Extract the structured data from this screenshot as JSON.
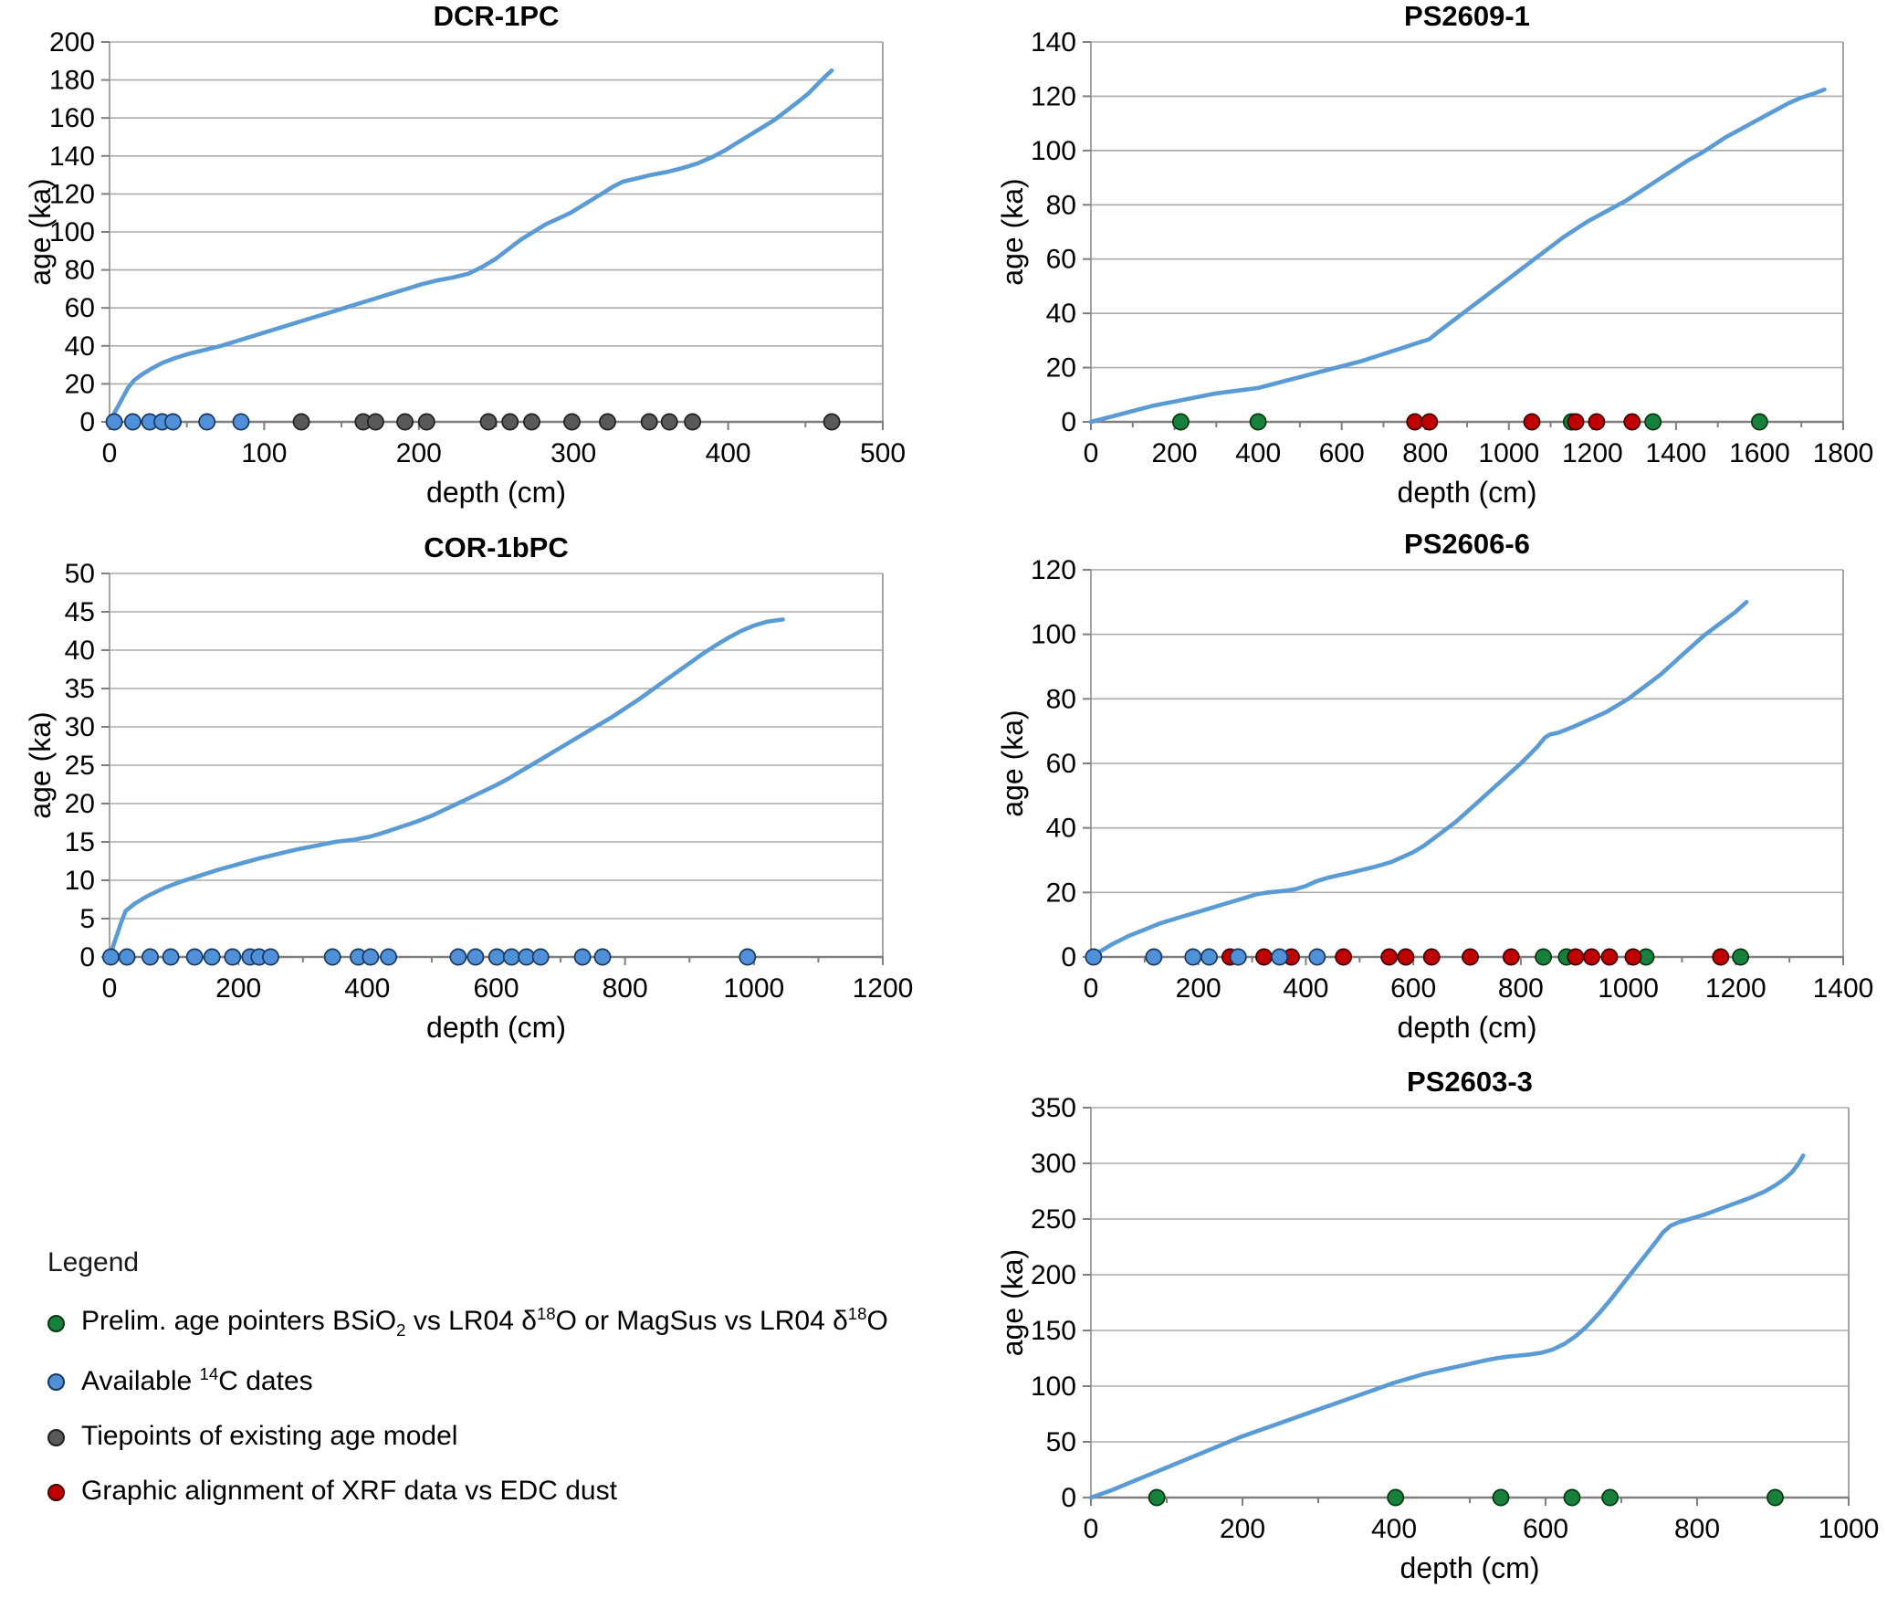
{
  "figure": {
    "background": "#ffffff"
  },
  "colors": {
    "line": "#5B9BD5",
    "grid": "#ABABAB",
    "axis_frame": "#9B9B9B",
    "axis_bottom": "#7F7F7F",
    "text": "#000000",
    "markers": {
      "blue": {
        "fill": "#4F90D9",
        "stroke": "#17375E"
      },
      "gray": {
        "fill": "#595959",
        "stroke": "#1f1f1f"
      },
      "green": {
        "fill": "#17803C",
        "stroke": "#06350f"
      },
      "red": {
        "fill": "#C00000",
        "stroke": "#3d0000"
      }
    }
  },
  "legend": {
    "heading": "Legend",
    "items": [
      {
        "marker": "green",
        "parts": [
          {
            "t": "Prelim. age pointers BSiO"
          },
          {
            "sub": "2"
          },
          {
            "t": " vs LR04 δ"
          },
          {
            "sup": "18"
          },
          {
            "t": "O or MagSus vs LR04 δ"
          },
          {
            "sup": "18"
          },
          {
            "t": "O"
          }
        ]
      },
      {
        "marker": "blue",
        "parts": [
          {
            "t": "Available "
          },
          {
            "sup": "14"
          },
          {
            "t": "C dates"
          }
        ]
      },
      {
        "marker": "gray",
        "parts": [
          {
            "t": "Tiepoints of existing age model"
          }
        ]
      },
      {
        "marker": "red",
        "parts": [
          {
            "t": "Graphic alignment of XRF data vs EDC dust"
          }
        ]
      }
    ]
  },
  "chart_data": [
    {
      "type": "line",
      "title": "DCR-1PC",
      "xlabel": "depth (cm)",
      "ylabel": "age (ka)",
      "xlim": [
        0,
        500
      ],
      "xtick_step": 100,
      "xminor_step": 50,
      "ylim": [
        0,
        200
      ],
      "ytick_step": 20,
      "grid": true,
      "curve": [
        [
          0,
          0
        ],
        [
          4,
          6
        ],
        [
          8,
          12
        ],
        [
          12,
          18
        ],
        [
          16,
          22
        ],
        [
          21,
          25
        ],
        [
          27,
          28
        ],
        [
          34,
          31
        ],
        [
          42,
          33.5
        ],
        [
          52,
          36
        ],
        [
          62,
          38
        ],
        [
          72,
          40
        ],
        [
          84,
          43
        ],
        [
          96,
          46
        ],
        [
          108,
          49
        ],
        [
          120,
          52
        ],
        [
          132,
          55
        ],
        [
          144,
          58
        ],
        [
          156,
          61
        ],
        [
          168,
          64
        ],
        [
          180,
          67
        ],
        [
          192,
          70
        ],
        [
          202,
          72.5
        ],
        [
          212,
          74.5
        ],
        [
          222,
          76
        ],
        [
          232,
          78
        ],
        [
          242,
          82
        ],
        [
          250,
          86
        ],
        [
          258,
          91
        ],
        [
          266,
          96
        ],
        [
          274,
          100
        ],
        [
          282,
          104
        ],
        [
          290,
          107
        ],
        [
          298,
          110
        ],
        [
          306,
          114
        ],
        [
          314,
          118
        ],
        [
          320,
          121
        ],
        [
          326,
          124
        ],
        [
          332,
          126.5
        ],
        [
          340,
          128
        ],
        [
          350,
          130
        ],
        [
          360,
          131.5
        ],
        [
          370,
          133.5
        ],
        [
          380,
          136
        ],
        [
          390,
          139.5
        ],
        [
          398,
          143
        ],
        [
          406,
          147
        ],
        [
          414,
          151
        ],
        [
          422,
          155
        ],
        [
          430,
          159
        ],
        [
          438,
          164
        ],
        [
          446,
          169
        ],
        [
          452,
          173
        ],
        [
          458,
          178
        ],
        [
          463,
          182
        ],
        [
          467,
          185
        ]
      ],
      "markers": {
        "blue": [
          3,
          15,
          26,
          34,
          41,
          63,
          85
        ],
        "gray": [
          124,
          164,
          172,
          191,
          205,
          245,
          259,
          273,
          299,
          322,
          349,
          362,
          377,
          467
        ]
      }
    },
    {
      "type": "line",
      "title": "PS2609-1",
      "xlabel": "depth (cm)",
      "ylabel": "age (ka)",
      "xlim": [
        0,
        1800
      ],
      "xtick_step": 200,
      "xminor_step": 100,
      "ylim": [
        0,
        140
      ],
      "ytick_step": 20,
      "grid": true,
      "curve": [
        [
          0,
          0
        ],
        [
          50,
          2
        ],
        [
          100,
          4
        ],
        [
          150,
          6
        ],
        [
          200,
          7.5
        ],
        [
          250,
          9
        ],
        [
          300,
          10.5
        ],
        [
          350,
          11.5
        ],
        [
          400,
          12.5
        ],
        [
          450,
          14.5
        ],
        [
          500,
          16.5
        ],
        [
          550,
          18.5
        ],
        [
          600,
          20.5
        ],
        [
          650,
          22.5
        ],
        [
          700,
          25
        ],
        [
          750,
          27.5
        ],
        [
          790,
          29.5
        ],
        [
          810,
          30.5
        ],
        [
          830,
          33
        ],
        [
          860,
          36.5
        ],
        [
          890,
          40
        ],
        [
          920,
          43.5
        ],
        [
          950,
          47
        ],
        [
          980,
          50.5
        ],
        [
          1010,
          54
        ],
        [
          1040,
          57.5
        ],
        [
          1070,
          61
        ],
        [
          1100,
          64.5
        ],
        [
          1130,
          68
        ],
        [
          1160,
          71
        ],
        [
          1190,
          74
        ],
        [
          1220,
          76.5
        ],
        [
          1250,
          79
        ],
        [
          1280,
          81.5
        ],
        [
          1310,
          84.5
        ],
        [
          1340,
          87.5
        ],
        [
          1370,
          90.5
        ],
        [
          1400,
          93.5
        ],
        [
          1430,
          96.5
        ],
        [
          1460,
          99
        ],
        [
          1490,
          102
        ],
        [
          1520,
          105
        ],
        [
          1550,
          107.5
        ],
        [
          1580,
          110
        ],
        [
          1610,
          112.5
        ],
        [
          1640,
          115
        ],
        [
          1670,
          117.5
        ],
        [
          1700,
          119.5
        ],
        [
          1730,
          121
        ],
        [
          1755,
          122.5
        ]
      ],
      "markers": {
        "green": [
          215,
          400,
          1150,
          1345,
          1600
        ],
        "red": [
          775,
          810,
          1055,
          1160,
          1210,
          1295
        ]
      }
    },
    {
      "type": "line",
      "title": "COR-1bPC",
      "xlabel": "depth (cm)",
      "ylabel": "age (ka)",
      "xlim": [
        0,
        1200
      ],
      "xtick_step": 200,
      "xminor_step": 100,
      "ylim": [
        0,
        50
      ],
      "ytick_step": 5,
      "grid": true,
      "curve": [
        [
          0,
          0
        ],
        [
          6,
          1.5
        ],
        [
          12,
          3
        ],
        [
          18,
          4.5
        ],
        [
          25,
          6
        ],
        [
          40,
          7
        ],
        [
          60,
          8
        ],
        [
          85,
          9
        ],
        [
          110,
          9.8
        ],
        [
          140,
          10.6
        ],
        [
          170,
          11.4
        ],
        [
          200,
          12.1
        ],
        [
          230,
          12.8
        ],
        [
          260,
          13.4
        ],
        [
          290,
          14
        ],
        [
          320,
          14.5
        ],
        [
          350,
          15
        ],
        [
          380,
          15.3
        ],
        [
          405,
          15.7
        ],
        [
          425,
          16.2
        ],
        [
          450,
          16.9
        ],
        [
          475,
          17.6
        ],
        [
          500,
          18.4
        ],
        [
          520,
          19.2
        ],
        [
          540,
          20
        ],
        [
          560,
          20.8
        ],
        [
          580,
          21.6
        ],
        [
          600,
          22.4
        ],
        [
          620,
          23.3
        ],
        [
          640,
          24.3
        ],
        [
          660,
          25.3
        ],
        [
          680,
          26.3
        ],
        [
          700,
          27.3
        ],
        [
          720,
          28.3
        ],
        [
          740,
          29.3
        ],
        [
          760,
          30.3
        ],
        [
          780,
          31.3
        ],
        [
          800,
          32.4
        ],
        [
          820,
          33.5
        ],
        [
          840,
          34.7
        ],
        [
          860,
          35.9
        ],
        [
          880,
          37.1
        ],
        [
          900,
          38.3
        ],
        [
          920,
          39.5
        ],
        [
          940,
          40.6
        ],
        [
          960,
          41.6
        ],
        [
          980,
          42.5
        ],
        [
          1000,
          43.2
        ],
        [
          1020,
          43.7
        ],
        [
          1045,
          44
        ]
      ],
      "markers": {
        "blue": [
          2,
          27,
          63,
          95,
          132,
          159,
          191,
          218,
          232,
          250,
          346,
          386,
          405,
          433,
          541,
          568,
          601,
          624,
          647,
          669,
          734,
          765,
          990
        ]
      }
    },
    {
      "type": "line",
      "title": "PS2606-6",
      "xlabel": "depth (cm)",
      "ylabel": "age (ka)",
      "xlim": [
        0,
        1400
      ],
      "xtick_step": 200,
      "xminor_step": 100,
      "ylim": [
        0,
        120
      ],
      "ytick_step": 20,
      "grid": true,
      "curve": [
        [
          0,
          0
        ],
        [
          15,
          1.5
        ],
        [
          40,
          4
        ],
        [
          70,
          6.5
        ],
        [
          100,
          8.5
        ],
        [
          130,
          10.5
        ],
        [
          160,
          12
        ],
        [
          190,
          13.5
        ],
        [
          220,
          15
        ],
        [
          250,
          16.5
        ],
        [
          280,
          18
        ],
        [
          310,
          19.5
        ],
        [
          330,
          20
        ],
        [
          360,
          20.5
        ],
        [
          380,
          21
        ],
        [
          400,
          22
        ],
        [
          420,
          23.5
        ],
        [
          440,
          24.5
        ],
        [
          460,
          25.3
        ],
        [
          480,
          26
        ],
        [
          500,
          26.8
        ],
        [
          520,
          27.6
        ],
        [
          540,
          28.5
        ],
        [
          560,
          29.5
        ],
        [
          580,
          31
        ],
        [
          600,
          32.5
        ],
        [
          620,
          34.5
        ],
        [
          640,
          37
        ],
        [
          660,
          39.5
        ],
        [
          680,
          42
        ],
        [
          700,
          45
        ],
        [
          720,
          48
        ],
        [
          740,
          51
        ],
        [
          760,
          54
        ],
        [
          780,
          57
        ],
        [
          800,
          60
        ],
        [
          815,
          62.5
        ],
        [
          830,
          65
        ],
        [
          845,
          68
        ],
        [
          855,
          69
        ],
        [
          870,
          69.5
        ],
        [
          885,
          70.5
        ],
        [
          900,
          71.5
        ],
        [
          920,
          73
        ],
        [
          940,
          74.5
        ],
        [
          960,
          76
        ],
        [
          980,
          78
        ],
        [
          1000,
          80
        ],
        [
          1020,
          82.5
        ],
        [
          1040,
          85
        ],
        [
          1060,
          87.5
        ],
        [
          1080,
          90.5
        ],
        [
          1100,
          93.5
        ],
        [
          1120,
          96.5
        ],
        [
          1140,
          99.5
        ],
        [
          1160,
          102
        ],
        [
          1180,
          104.5
        ],
        [
          1200,
          107
        ],
        [
          1220,
          110
        ]
      ],
      "markers": {
        "blue": [
          5,
          117,
          190,
          220,
          274,
          351,
          421
        ],
        "green": [
          842,
          885,
          1033,
          1209
        ],
        "red": [
          259,
          322,
          373,
          470,
          555,
          586,
          634,
          706,
          782,
          902,
          932,
          965,
          1009,
          1172
        ]
      }
    },
    {
      "type": "line",
      "title": "PS2603-3",
      "xlabel": "depth (cm)",
      "ylabel": "age (ka)",
      "xlim": [
        0,
        1000
      ],
      "xtick_step": 200,
      "xminor_step": 100,
      "ylim": [
        0,
        350
      ],
      "ytick_step": 50,
      "grid": true,
      "curve": [
        [
          0,
          0
        ],
        [
          25,
          6
        ],
        [
          50,
          13
        ],
        [
          75,
          20
        ],
        [
          100,
          27
        ],
        [
          125,
          34
        ],
        [
          150,
          41
        ],
        [
          175,
          48
        ],
        [
          200,
          55
        ],
        [
          225,
          61
        ],
        [
          250,
          67
        ],
        [
          275,
          73
        ],
        [
          300,
          79
        ],
        [
          325,
          85
        ],
        [
          350,
          91
        ],
        [
          375,
          97
        ],
        [
          400,
          103
        ],
        [
          420,
          107
        ],
        [
          440,
          111
        ],
        [
          460,
          114
        ],
        [
          480,
          117
        ],
        [
          500,
          120
        ],
        [
          520,
          123
        ],
        [
          535,
          125
        ],
        [
          550,
          126.5
        ],
        [
          565,
          127.5
        ],
        [
          580,
          128.5
        ],
        [
          595,
          130
        ],
        [
          610,
          133
        ],
        [
          625,
          138
        ],
        [
          640,
          145
        ],
        [
          655,
          154
        ],
        [
          670,
          165
        ],
        [
          685,
          177
        ],
        [
          700,
          190
        ],
        [
          715,
          203
        ],
        [
          730,
          216
        ],
        [
          745,
          229
        ],
        [
          755,
          238
        ],
        [
          765,
          244
        ],
        [
          775,
          247
        ],
        [
          790,
          250
        ],
        [
          810,
          254
        ],
        [
          830,
          259
        ],
        [
          850,
          264
        ],
        [
          870,
          269
        ],
        [
          890,
          275
        ],
        [
          905,
          281
        ],
        [
          915,
          286
        ],
        [
          925,
          292
        ],
        [
          933,
          299
        ],
        [
          940,
          307
        ]
      ],
      "markers": {
        "green": [
          87,
          402,
          541,
          635,
          685,
          903
        ]
      }
    }
  ]
}
